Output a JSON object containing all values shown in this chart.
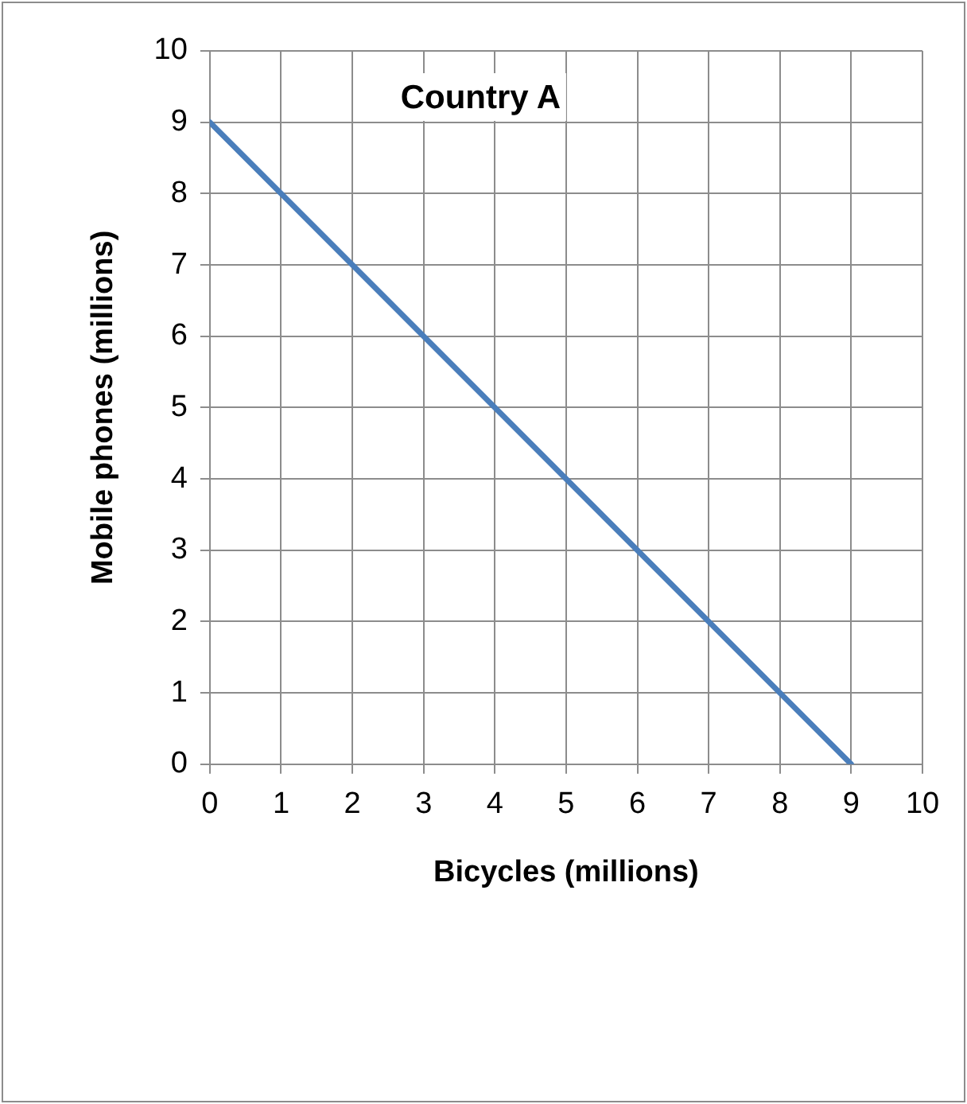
{
  "chart_data": {
    "type": "line",
    "title": "Country A",
    "xlabel": "Bicycles (millions)",
    "ylabel": "Mobile phones (millions)",
    "x": [
      0,
      9
    ],
    "series": [
      {
        "color": "#4a7ebb",
        "values": [
          9,
          0
        ]
      }
    ],
    "xlim": [
      0,
      10
    ],
    "ylim": [
      0,
      10
    ],
    "xticks": [
      0,
      1,
      2,
      3,
      4,
      5,
      6,
      7,
      8,
      9,
      10
    ],
    "yticks": [
      0,
      1,
      2,
      3,
      4,
      5,
      6,
      7,
      8,
      9,
      10
    ],
    "grid": true,
    "legend": false,
    "marker": "none",
    "line_style": "solid"
  }
}
